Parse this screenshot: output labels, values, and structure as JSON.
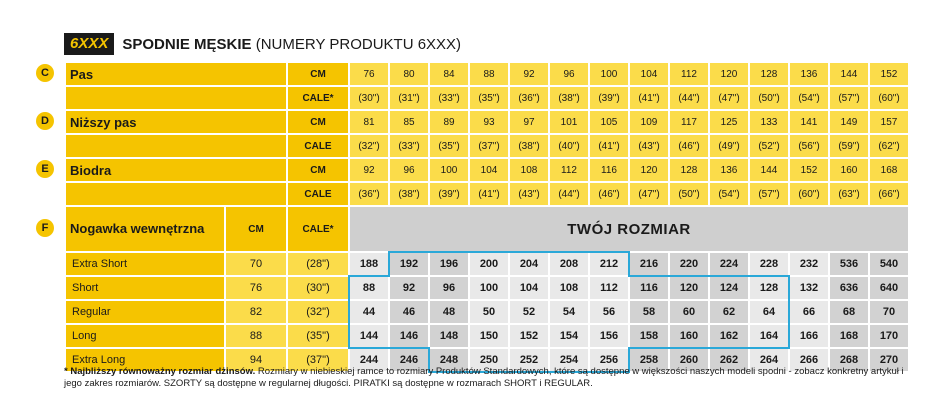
{
  "title": {
    "badge": "6XXX",
    "main": "SPODNIE MĘSKIE",
    "sub": "(NUMERY PRODUKTU 6XXX)"
  },
  "rows": {
    "pas": {
      "letter": "C",
      "label": "Pas",
      "cm_label": "CM",
      "cale_label": "CALE*",
      "cm": [
        "76",
        "80",
        "84",
        "88",
        "92",
        "96",
        "100",
        "104",
        "112",
        "120",
        "128",
        "136",
        "144",
        "152"
      ],
      "cale": [
        "(30\")",
        "(31\")",
        "(33\")",
        "(35\")",
        "(36\")",
        "(38\")",
        "(39\")",
        "(41\")",
        "(44\")",
        "(47\")",
        "(50\")",
        "(54\")",
        "(57\")",
        "(60\")"
      ]
    },
    "nizszy": {
      "letter": "D",
      "label": "Niższy pas",
      "cm_label": "CM",
      "cale_label": "CALE",
      "cm": [
        "81",
        "85",
        "89",
        "93",
        "97",
        "101",
        "105",
        "109",
        "117",
        "125",
        "133",
        "141",
        "149",
        "157"
      ],
      "cale": [
        "(32\")",
        "(33\")",
        "(35\")",
        "(37\")",
        "(38\")",
        "(40\")",
        "(41\")",
        "(43\")",
        "(46\")",
        "(49\")",
        "(52\")",
        "(56\")",
        "(59\")",
        "(62\")"
      ]
    },
    "biodra": {
      "letter": "E",
      "label": "Biodra",
      "cm_label": "CM",
      "cale_label": "CALE",
      "cm": [
        "92",
        "96",
        "100",
        "104",
        "108",
        "112",
        "116",
        "120",
        "128",
        "136",
        "144",
        "152",
        "160",
        "168"
      ],
      "cale": [
        "(36\")",
        "(38\")",
        "(39\")",
        "(41\")",
        "(43\")",
        "(44\")",
        "(46\")",
        "(47\")",
        "(50\")",
        "(54\")",
        "(57\")",
        "(60\")",
        "(63\")",
        "(66\")"
      ]
    }
  },
  "inseam": {
    "letter": "F",
    "label": "Nogawka wewnętrzna",
    "cm_label": "CM",
    "cale_label": "CALE*",
    "your_size": "TWÓJ ROZMIAR",
    "items": [
      {
        "name": "Extra Short",
        "cm": "70",
        "cale": "(28\")",
        "sizes": [
          "188",
          "192",
          "196",
          "200",
          "204",
          "208",
          "212",
          "216",
          "220",
          "224",
          "228",
          "232",
          "536",
          "540"
        ]
      },
      {
        "name": "Short",
        "cm": "76",
        "cale": "(30\")",
        "sizes": [
          "88",
          "92",
          "96",
          "100",
          "104",
          "108",
          "112",
          "116",
          "120",
          "124",
          "128",
          "132",
          "636",
          "640"
        ]
      },
      {
        "name": "Regular",
        "cm": "82",
        "cale": "(32\")",
        "sizes": [
          "44",
          "46",
          "48",
          "50",
          "52",
          "54",
          "56",
          "58",
          "60",
          "62",
          "64",
          "66",
          "68",
          "70"
        ]
      },
      {
        "name": "Long",
        "cm": "88",
        "cale": "(35\")",
        "sizes": [
          "144",
          "146",
          "148",
          "150",
          "152",
          "154",
          "156",
          "158",
          "160",
          "162",
          "164",
          "166",
          "168",
          "170"
        ]
      },
      {
        "name": "Extra Long",
        "cm": "94",
        "cale": "(37\")",
        "sizes": [
          "244",
          "246",
          "248",
          "250",
          "252",
          "254",
          "256",
          "258",
          "260",
          "262",
          "264",
          "266",
          "268",
          "270"
        ]
      }
    ]
  },
  "notes": {
    "bold": "* Najbliższy równoważny rozmiar dżinsów.",
    "text": " Rozmiary w niebieskiej ramce to rozmiary Produktów Standardowych, które są dostępne w większości naszych modeli spodni - zobacz konkretny artykuł i jego zakres rozmiarów. SZORTY są dostępne w regularnej długości. PIRATKI są dostępne w rozmarach SHORT i REGULAR."
  },
  "colors": {
    "yellow": "#f5c400",
    "light_yellow": "#fbdc4a",
    "outline_blue": "#2aa8d8",
    "grey_light": "#e9e9e9",
    "grey_dark": "#d2d2d2"
  }
}
